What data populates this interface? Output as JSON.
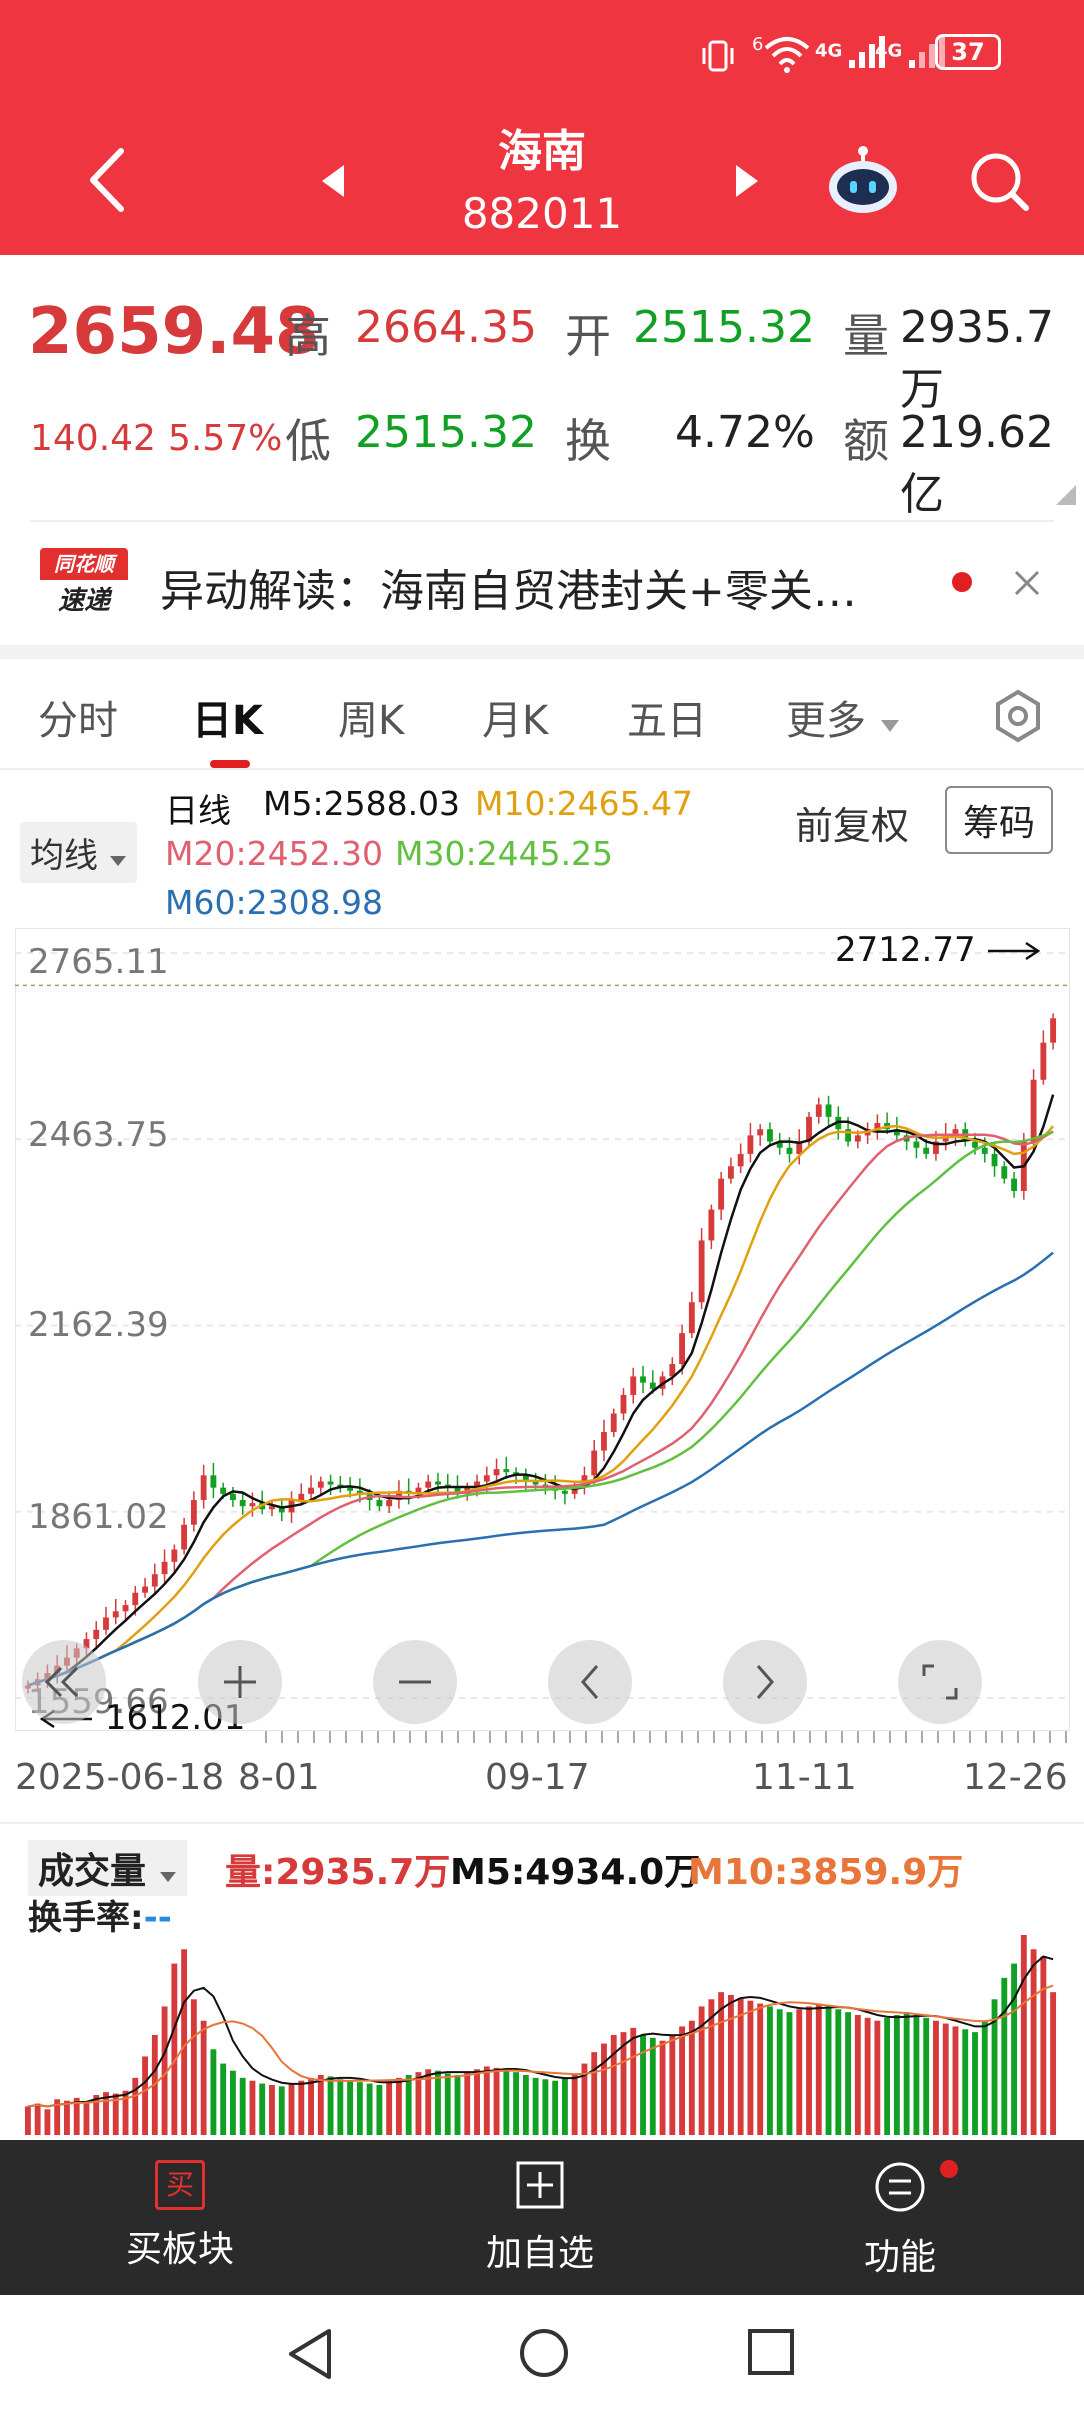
{
  "status": {
    "wifi_label": "6",
    "sig1": "4G",
    "sig2": "4G",
    "battery": "37"
  },
  "header": {
    "title": "海南",
    "code": "882011"
  },
  "quote": {
    "price": "2659.48",
    "change": "140.42",
    "change_pct": "5.57%",
    "high_label": "高",
    "high": "2664.35",
    "open_label": "开",
    "open": "2515.32",
    "vol_label": "量",
    "vol": "2935.7万",
    "low_label": "低",
    "low": "2515.32",
    "turn_label": "换",
    "turn": "4.72%",
    "amt_label": "额",
    "amt": "219.62亿"
  },
  "news": {
    "logo_top": "同花顺",
    "logo_bottom": "速递",
    "text": "异动解读：海南自贸港封关+零关…"
  },
  "tabs": [
    "分时",
    "日K",
    "周K",
    "月K",
    "五日",
    "更多"
  ],
  "kline": {
    "ma_select": "均线",
    "period": "日线",
    "m5": "M5:2588.03",
    "m10": "M10:2465.47",
    "m20": "M20:2452.30",
    "m30": "M30:2445.25",
    "m60": "M60:2308.98",
    "adjust": "前复权",
    "chips": "筹码",
    "max_label": "2712.77",
    "min_label": "1612.01",
    "y_ticks": [
      "2765.11",
      "2463.75",
      "2162.39",
      "1861.02",
      "1559.66"
    ],
    "x_ticks": [
      "2025-06-18",
      "8-01",
      "09-17",
      "11-11",
      "12-26"
    ]
  },
  "volume": {
    "select": "成交量",
    "vol": "量:2935.7万",
    "m5": "M5:4934.0万",
    "m10": "M10:3859.9万",
    "turn_label": "换手率:",
    "turn_value": "--"
  },
  "colors": {
    "header": "#ee3540",
    "up": "#d63a3a",
    "down": "#12a024",
    "m5": "#111111",
    "m10": "#e0a010",
    "m20": "#e06070",
    "m30": "#60c040",
    "m60": "#2a6fb0"
  },
  "bottom": {
    "buy_icon": "买",
    "buy": "买板块",
    "add": "加自选",
    "func": "功能"
  },
  "chart_data": {
    "type": "candlestick",
    "x_ticks": [
      "2025-06-18",
      "8-01",
      "09-17",
      "11-11",
      "12-26"
    ],
    "ylim": [
      1559.66,
      2765.11
    ],
    "close": [
      1580,
      1590,
      1600,
      1612,
      1625,
      1640,
      1655,
      1670,
      1690,
      1700,
      1710,
      1730,
      1740,
      1760,
      1780,
      1800,
      1840,
      1880,
      1920,
      1900,
      1890,
      1880,
      1870,
      1875,
      1865,
      1870,
      1860,
      1880,
      1890,
      1900,
      1910,
      1905,
      1900,
      1895,
      1890,
      1880,
      1870,
      1880,
      1895,
      1890,
      1900,
      1910,
      1905,
      1900,
      1890,
      1900,
      1910,
      1920,
      1930,
      1925,
      1920,
      1910,
      1905,
      1900,
      1895,
      1890,
      1900,
      1920,
      1960,
      1990,
      2020,
      2050,
      2080,
      2070,
      2060,
      2080,
      2100,
      2150,
      2200,
      2300,
      2350,
      2400,
      2420,
      2440,
      2470,
      2480,
      2460,
      2450,
      2440,
      2460,
      2500,
      2520,
      2500,
      2480,
      2460,
      2470,
      2480,
      2490,
      2480,
      2470,
      2460,
      2450,
      2440,
      2460,
      2470,
      2480,
      2460,
      2450,
      2440,
      2420,
      2400,
      2380,
      2460,
      2560,
      2620,
      2659.48
    ],
    "volume": [
      20,
      22,
      18,
      25,
      24,
      26,
      23,
      28,
      30,
      29,
      31,
      40,
      55,
      70,
      90,
      120,
      130,
      95,
      80,
      60,
      50,
      45,
      40,
      38,
      36,
      35,
      34,
      36,
      38,
      40,
      42,
      41,
      39,
      38,
      37,
      36,
      35,
      38,
      40,
      42,
      44,
      46,
      45,
      43,
      42,
      44,
      46,
      48,
      47,
      46,
      44,
      42,
      40,
      39,
      38,
      40,
      42,
      50,
      58,
      64,
      70,
      72,
      75,
      70,
      68,
      66,
      70,
      76,
      80,
      90,
      95,
      100,
      98,
      96,
      94,
      92,
      90,
      88,
      86,
      88,
      90,
      92,
      90,
      88,
      86,
      84,
      82,
      80,
      82,
      84,
      86,
      84,
      82,
      80,
      78,
      76,
      74,
      72,
      80,
      95,
      110,
      120,
      140,
      130,
      125,
      100
    ],
    "ma5": [
      2588.03
    ],
    "ma10": [
      2465.47
    ],
    "ma20": [
      2452.3
    ],
    "ma30": [
      2445.25
    ],
    "ma60": [
      2308.98
    ]
  }
}
